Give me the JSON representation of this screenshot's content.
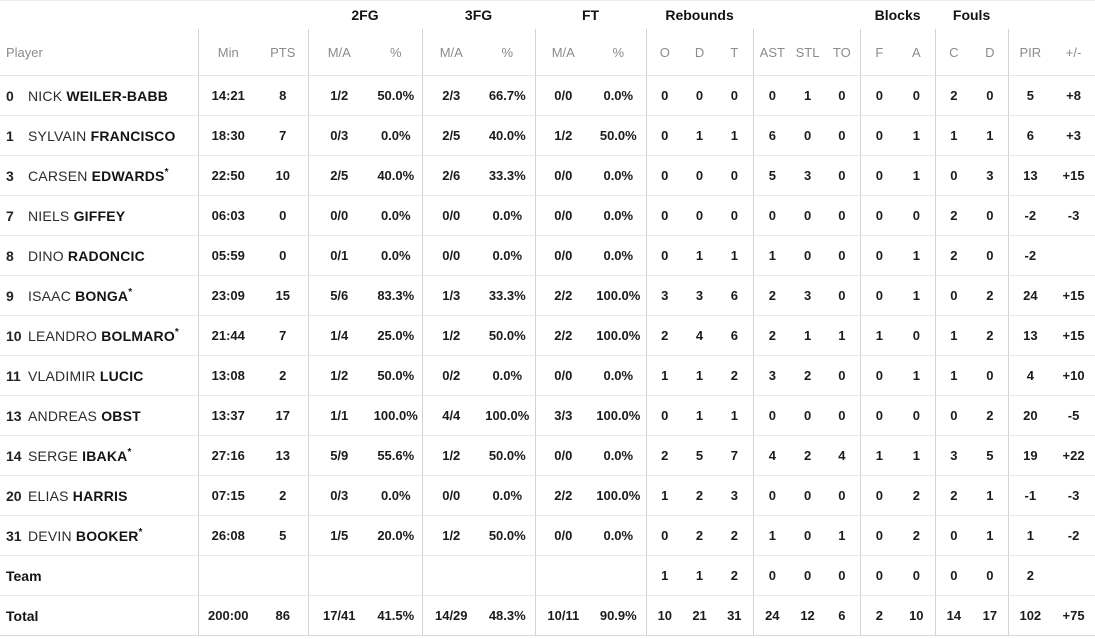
{
  "table": {
    "groups": [
      {
        "label": "",
        "span": 1
      },
      {
        "label": "",
        "span": 2
      },
      {
        "label": "2FG",
        "span": 2
      },
      {
        "label": "3FG",
        "span": 2
      },
      {
        "label": "FT",
        "span": 2
      },
      {
        "label": "Rebounds",
        "span": 3
      },
      {
        "label": "",
        "span": 3
      },
      {
        "label": "Blocks",
        "span": 2
      },
      {
        "label": "Fouls",
        "span": 2
      },
      {
        "label": "",
        "span": 2
      }
    ],
    "columns": [
      "Player",
      "Min",
      "PTS",
      "M/A",
      "%",
      "M/A",
      "%",
      "M/A",
      "%",
      "O",
      "D",
      "T",
      "AST",
      "STL",
      "TO",
      "F",
      "A",
      "C",
      "D",
      "PIR",
      "+/-"
    ],
    "starter_mark": "*",
    "rows": [
      {
        "num": "0",
        "first": "NICK",
        "last": "WEILER-BABB",
        "starter": false,
        "cells": [
          "14:21",
          "8",
          "1/2",
          "50.0%",
          "2/3",
          "66.7%",
          "0/0",
          "0.0%",
          "0",
          "0",
          "0",
          "0",
          "1",
          "0",
          "0",
          "0",
          "2",
          "0",
          "5",
          "+8"
        ]
      },
      {
        "num": "1",
        "first": "SYLVAIN",
        "last": "FRANCISCO",
        "starter": false,
        "cells": [
          "18:30",
          "7",
          "0/3",
          "0.0%",
          "2/5",
          "40.0%",
          "1/2",
          "50.0%",
          "0",
          "1",
          "1",
          "6",
          "0",
          "0",
          "0",
          "1",
          "1",
          "1",
          "6",
          "+3"
        ]
      },
      {
        "num": "3",
        "first": "CARSEN",
        "last": "EDWARDS",
        "starter": true,
        "cells": [
          "22:50",
          "10",
          "2/5",
          "40.0%",
          "2/6",
          "33.3%",
          "0/0",
          "0.0%",
          "0",
          "0",
          "0",
          "5",
          "3",
          "0",
          "0",
          "1",
          "0",
          "3",
          "13",
          "+15"
        ]
      },
      {
        "num": "7",
        "first": "NIELS",
        "last": "GIFFEY",
        "starter": false,
        "cells": [
          "06:03",
          "0",
          "0/0",
          "0.0%",
          "0/0",
          "0.0%",
          "0/0",
          "0.0%",
          "0",
          "0",
          "0",
          "0",
          "0",
          "0",
          "0",
          "0",
          "2",
          "0",
          "-2",
          "-3"
        ]
      },
      {
        "num": "8",
        "first": "DINO",
        "last": "RADONCIC",
        "starter": false,
        "cells": [
          "05:59",
          "0",
          "0/1",
          "0.0%",
          "0/0",
          "0.0%",
          "0/0",
          "0.0%",
          "0",
          "1",
          "1",
          "1",
          "0",
          "0",
          "0",
          "1",
          "2",
          "0",
          "-2",
          ""
        ]
      },
      {
        "num": "9",
        "first": "ISAAC",
        "last": "BONGA",
        "starter": true,
        "cells": [
          "23:09",
          "15",
          "5/6",
          "83.3%",
          "1/3",
          "33.3%",
          "2/2",
          "100.0%",
          "3",
          "3",
          "6",
          "2",
          "3",
          "0",
          "0",
          "1",
          "0",
          "2",
          "24",
          "+15"
        ]
      },
      {
        "num": "10",
        "first": "LEANDRO",
        "last": "BOLMARO",
        "starter": true,
        "cells": [
          "21:44",
          "7",
          "1/4",
          "25.0%",
          "1/2",
          "50.0%",
          "2/2",
          "100.0%",
          "2",
          "4",
          "6",
          "2",
          "1",
          "1",
          "1",
          "0",
          "1",
          "2",
          "13",
          "+15"
        ]
      },
      {
        "num": "11",
        "first": "VLADIMIR",
        "last": "LUCIC",
        "starter": false,
        "cells": [
          "13:08",
          "2",
          "1/2",
          "50.0%",
          "0/2",
          "0.0%",
          "0/0",
          "0.0%",
          "1",
          "1",
          "2",
          "3",
          "2",
          "0",
          "0",
          "1",
          "1",
          "0",
          "4",
          "+10"
        ]
      },
      {
        "num": "13",
        "first": "ANDREAS",
        "last": "OBST",
        "starter": false,
        "cells": [
          "13:37",
          "17",
          "1/1",
          "100.0%",
          "4/4",
          "100.0%",
          "3/3",
          "100.0%",
          "0",
          "1",
          "1",
          "0",
          "0",
          "0",
          "0",
          "0",
          "0",
          "2",
          "20",
          "-5"
        ]
      },
      {
        "num": "14",
        "first": "SERGE",
        "last": "IBAKA",
        "starter": true,
        "cells": [
          "27:16",
          "13",
          "5/9",
          "55.6%",
          "1/2",
          "50.0%",
          "0/0",
          "0.0%",
          "2",
          "5",
          "7",
          "4",
          "2",
          "4",
          "1",
          "1",
          "3",
          "5",
          "19",
          "+22"
        ]
      },
      {
        "num": "20",
        "first": "ELIAS",
        "last": "HARRIS",
        "starter": false,
        "cells": [
          "07:15",
          "2",
          "0/3",
          "0.0%",
          "0/0",
          "0.0%",
          "2/2",
          "100.0%",
          "1",
          "2",
          "3",
          "0",
          "0",
          "0",
          "0",
          "2",
          "2",
          "1",
          "-1",
          "-3"
        ]
      },
      {
        "num": "31",
        "first": "DEVIN",
        "last": "BOOKER",
        "starter": true,
        "cells": [
          "26:08",
          "5",
          "1/5",
          "20.0%",
          "1/2",
          "50.0%",
          "0/0",
          "0.0%",
          "0",
          "2",
          "2",
          "1",
          "0",
          "1",
          "0",
          "2",
          "0",
          "1",
          "1",
          "-2"
        ]
      },
      {
        "label": "Team",
        "cells": [
          "",
          "",
          "",
          "",
          "",
          "",
          "",
          "",
          "1",
          "1",
          "2",
          "0",
          "0",
          "0",
          "0",
          "0",
          "0",
          "0",
          "2",
          ""
        ]
      },
      {
        "label": "Total",
        "cells": [
          "200:00",
          "86",
          "17/41",
          "41.5%",
          "14/29",
          "48.3%",
          "10/11",
          "90.9%",
          "10",
          "21",
          "31",
          "24",
          "12",
          "6",
          "2",
          "10",
          "14",
          "17",
          "102",
          "+75"
        ]
      }
    ]
  },
  "colors": {
    "header_text": "#8b8b90",
    "data_text": "#1c1c1f",
    "row_divider": "#e7e7e9",
    "group_divider": "#d2d2d5",
    "background": "#ffffff"
  }
}
